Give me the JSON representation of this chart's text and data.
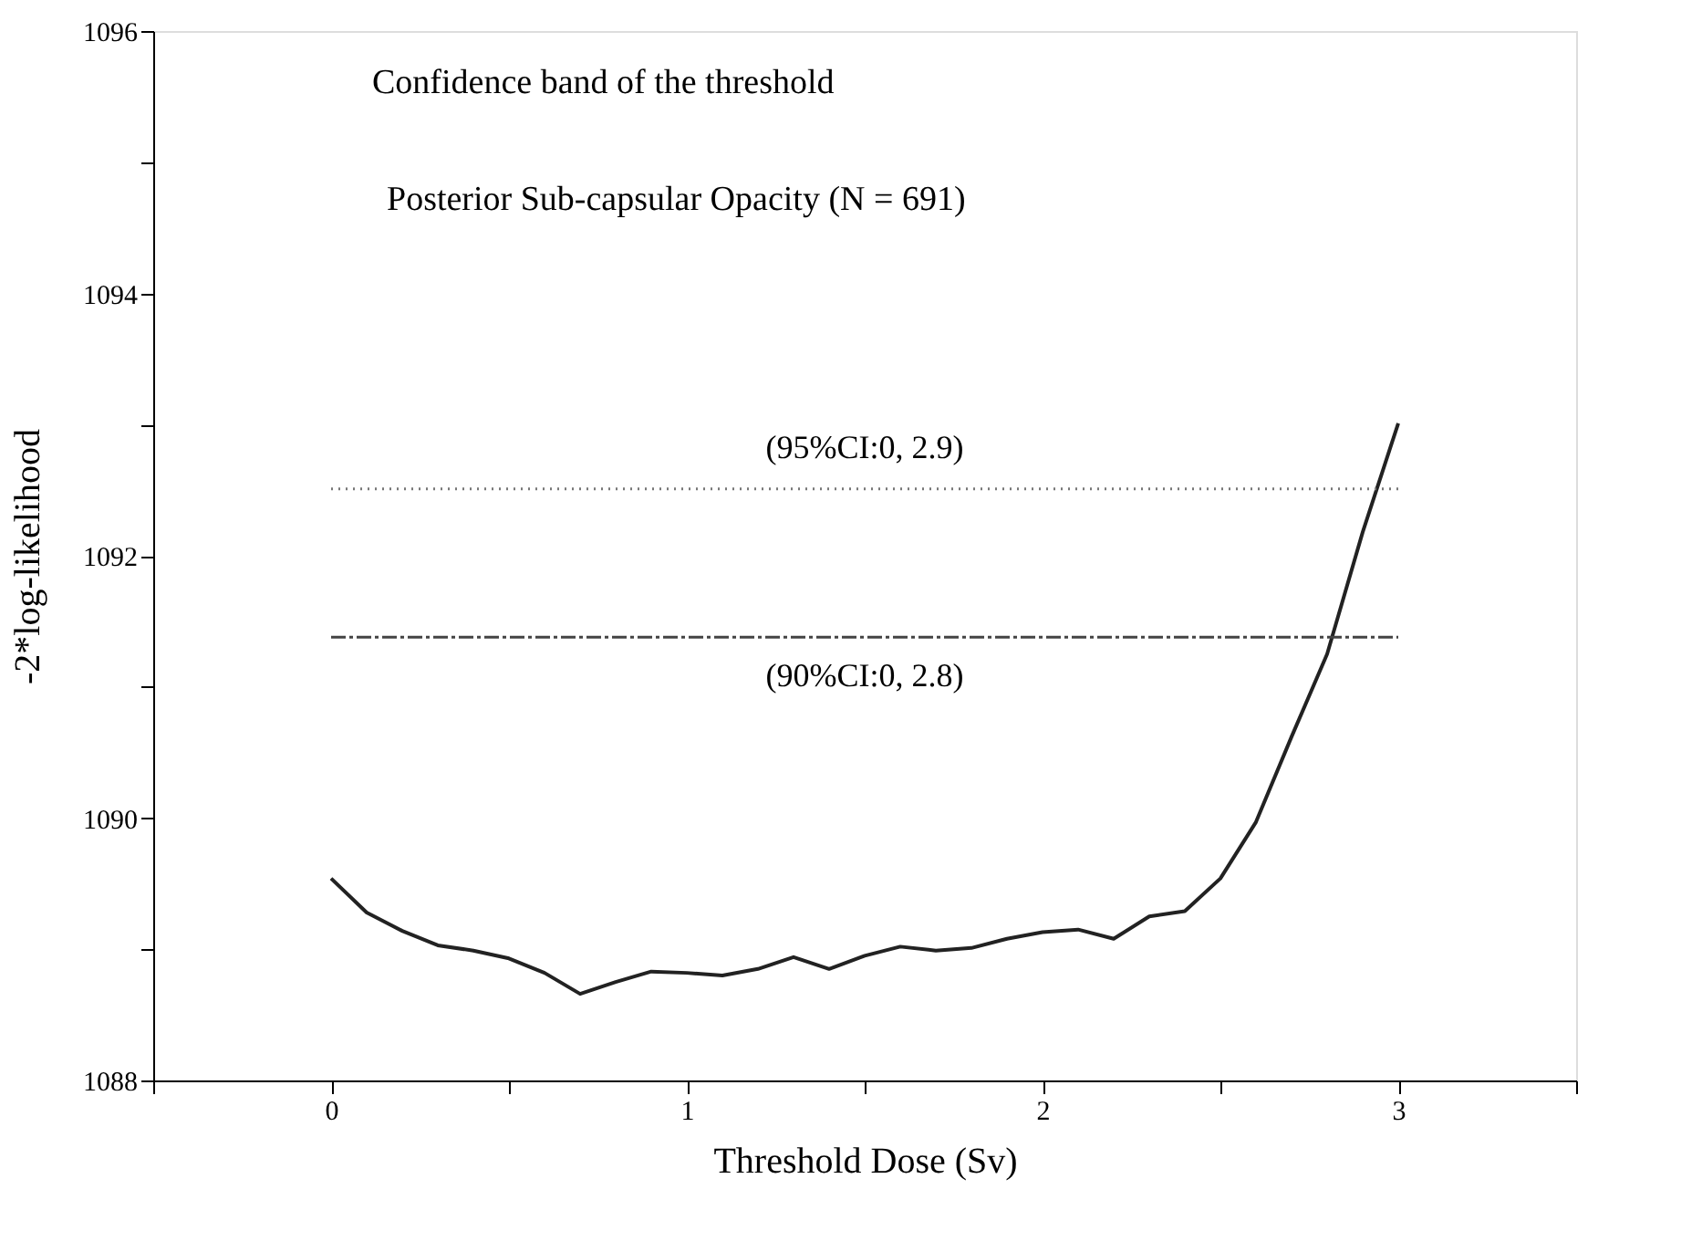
{
  "chart_data": {
    "type": "line",
    "title": "Confidence band of the threshold",
    "subtitle": "Posterior Sub-capsular Opacity (N = 691)",
    "xlabel": "Threshold Dose (Sv)",
    "ylabel": "-2*log-likelihood",
    "x": [
      0,
      0.1,
      0.2,
      0.3,
      0.4,
      0.5,
      0.6,
      0.7,
      0.8,
      0.9,
      1.0,
      1.1,
      1.2,
      1.3,
      1.4,
      1.5,
      1.6,
      1.7,
      1.8,
      1.9,
      2.0,
      2.1,
      2.2,
      2.3,
      2.4,
      2.5,
      2.6,
      2.7,
      2.8,
      2.9,
      3.0
    ],
    "series": [
      {
        "color": "#222222",
        "values": [
          1089.54,
          1089.28,
          1089.14,
          1089.03,
          1088.99,
          1088.93,
          1088.82,
          1088.66,
          1088.75,
          1088.83,
          1088.82,
          1088.8,
          1088.85,
          1088.94,
          1088.85,
          1088.95,
          1089.02,
          1088.99,
          1089.01,
          1089.08,
          1089.13,
          1089.15,
          1089.08,
          1089.25,
          1089.29,
          1089.54,
          1089.97,
          1090.62,
          1091.25,
          1092.18,
          1093.01
        ]
      }
    ],
    "ref_lines": [
      {
        "axis": "y",
        "value": 1092.51,
        "line_style": "dotted",
        "color": "#777777"
      },
      {
        "axis": "y",
        "value": 1091.38,
        "line_style": "dashed",
        "color": "#444444"
      }
    ],
    "annotations": [
      "(95%CI:0, 2.9)",
      "(90%CI:0, 2.8)"
    ],
    "xlim": [
      -0.5,
      3.5
    ],
    "ylim": [
      1088,
      1096
    ],
    "xticks": [
      {
        "value": -0.5,
        "label": null
      },
      0,
      {
        "value": 0.5,
        "label": null
      },
      1,
      {
        "value": 1.5,
        "label": null
      },
      2,
      {
        "value": 2.5,
        "label": null
      },
      3,
      {
        "value": 3.5,
        "label": null
      }
    ],
    "yticks": [
      1088,
      {
        "value": 1089,
        "label": null
      },
      1090,
      {
        "value": 1091,
        "label": null
      },
      1092,
      {
        "value": 1093,
        "label": null
      },
      1094,
      {
        "value": 1095,
        "label": null
      },
      1096
    ],
    "grid": false,
    "marker": "none",
    "line_style": "solid"
  }
}
